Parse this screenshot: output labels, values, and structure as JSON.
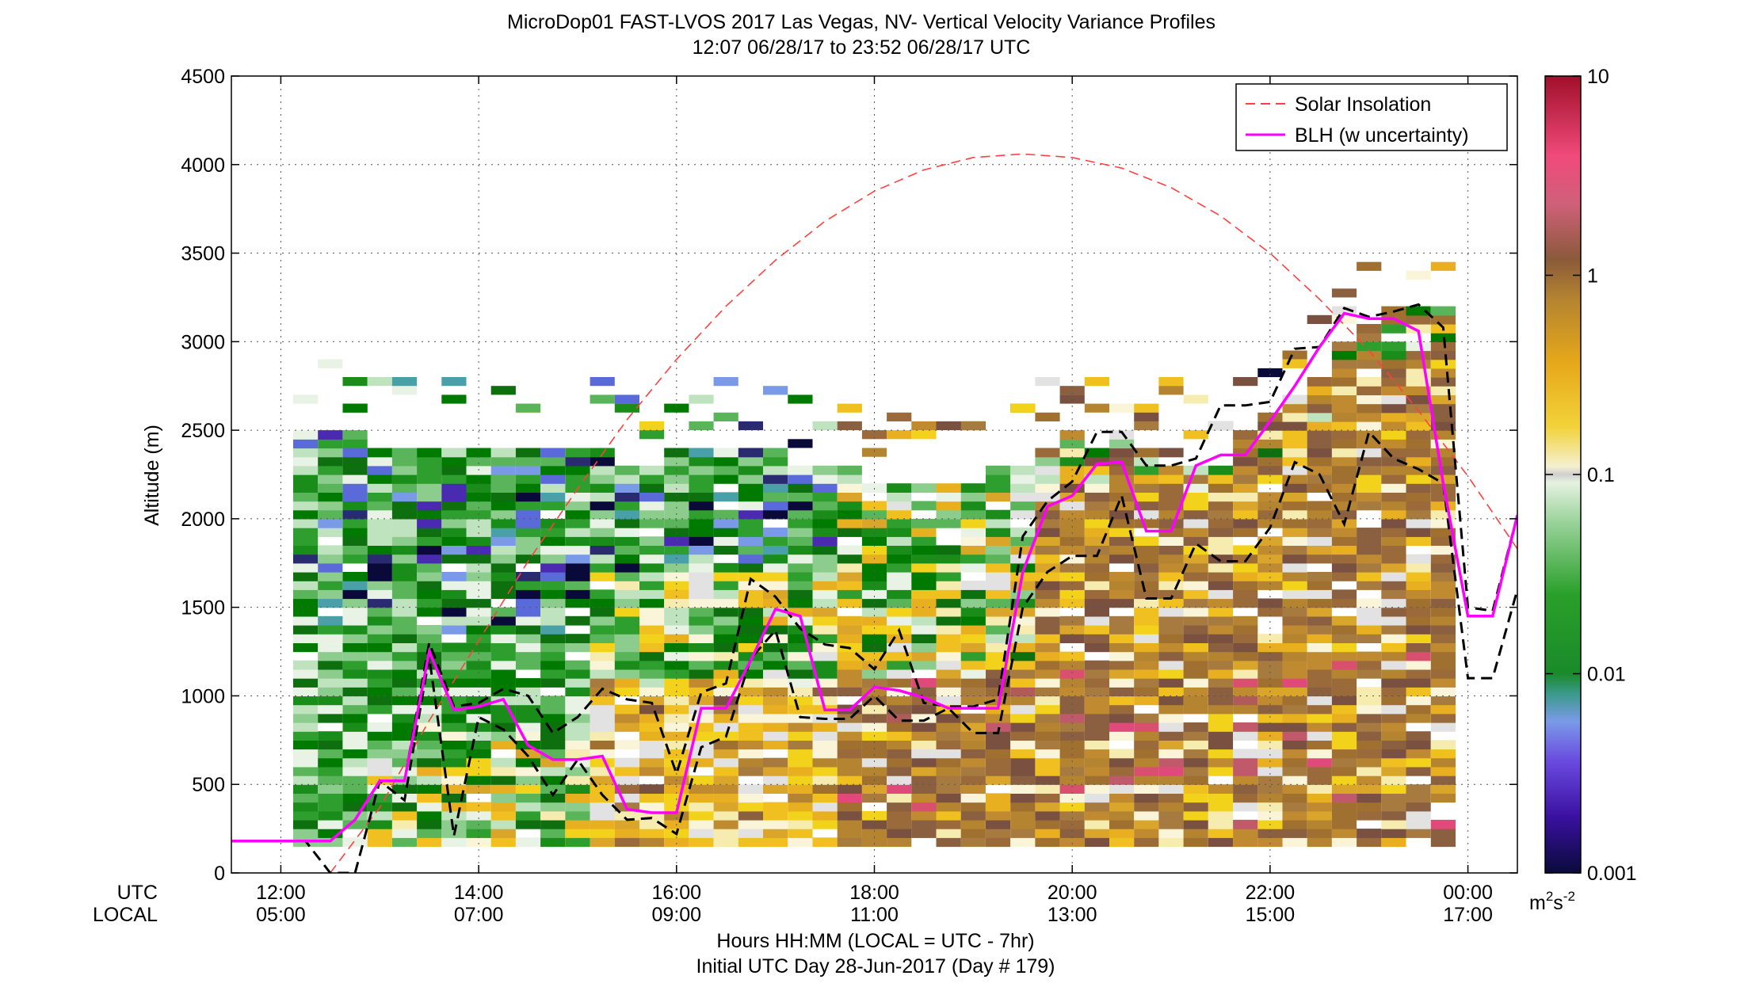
{
  "chart_data": {
    "type": "heatmap",
    "title": "MicroDop01 FAST-LVOS 2017 Las Vegas, NV- Vertical Velocity Variance Profiles",
    "subtitle": "12:07 06/28/17 to 23:52 06/28/17  UTC",
    "ylabel": "Altitude (m)",
    "xlabel": "Hours HH:MM  (LOCAL = UTC - 7hr)",
    "xlabel2": "Initial UTC Day 28-Jun-2017 (Day # 179)",
    "xaxis_row_labels": [
      "UTC",
      "LOCAL"
    ],
    "x_range_hours_utc": [
      11.5,
      24.5
    ],
    "ylim": [
      0,
      4500
    ],
    "yticks": [
      "0",
      "500",
      "1000",
      "1500",
      "2000",
      "2500",
      "3000",
      "3500",
      "4000",
      "4500"
    ],
    "xticks": [
      {
        "h": 12,
        "utc": "12:00",
        "local": "05:00"
      },
      {
        "h": 14,
        "utc": "14:00",
        "local": "07:00"
      },
      {
        "h": 16,
        "utc": "16:00",
        "local": "09:00"
      },
      {
        "h": 18,
        "utc": "18:00",
        "local": "11:00"
      },
      {
        "h": 20,
        "utc": "20:00",
        "local": "13:00"
      },
      {
        "h": 22,
        "utc": "22:00",
        "local": "15:00"
      },
      {
        "h": 24,
        "utc": "00:00",
        "local": "17:00"
      }
    ],
    "grid": true,
    "legend_position": "top-right",
    "legend": [
      {
        "label": "Solar Insolation",
        "color": "#ff4040",
        "style": "dashed"
      },
      {
        "label": "BLH (w uncertainty)",
        "color": "#ff00ff",
        "style": "solid"
      }
    ],
    "colorbar": {
      "scale": "log",
      "range": [
        0.001,
        10
      ],
      "tick_labels": [
        "0.001",
        "0.01",
        "0.1",
        "1",
        "10"
      ],
      "units_base": "m",
      "units_sup1": "2",
      "units_mid": "s",
      "units_sup2": "-2"
    },
    "blh": {
      "hours": [
        11.5,
        12.25,
        12.5,
        12.75,
        13.0,
        13.25,
        13.5,
        13.75,
        14.0,
        14.25,
        14.5,
        14.75,
        15.0,
        15.25,
        15.5,
        15.75,
        16.0,
        16.25,
        16.5,
        16.75,
        17.0,
        17.25,
        17.5,
        17.75,
        18.0,
        18.25,
        18.5,
        18.75,
        19.0,
        19.25,
        19.5,
        19.75,
        20.0,
        20.25,
        20.5,
        20.75,
        21.0,
        21.25,
        21.5,
        21.75,
        22.0,
        22.25,
        22.5,
        22.75,
        23.0,
        23.25,
        23.5,
        23.75,
        24.0,
        24.25,
        24.5
      ],
      "meters": [
        180,
        180,
        180,
        300,
        520,
        520,
        1250,
        920,
        940,
        980,
        720,
        640,
        640,
        660,
        360,
        340,
        340,
        930,
        930,
        1200,
        1490,
        1450,
        920,
        920,
        1050,
        1030,
        990,
        930,
        930,
        930,
        1700,
        2070,
        2130,
        2310,
        2320,
        1930,
        1930,
        2300,
        2360,
        2360,
        2550,
        2750,
        2970,
        3160,
        3130,
        3130,
        3060,
        2200,
        1450,
        1450,
        2020
      ],
      "upper": [
        180,
        180,
        180,
        300,
        520,
        520,
        1300,
        940,
        960,
        1040,
        1000,
        790,
        880,
        1040,
        980,
        960,
        560,
        1020,
        1070,
        1660,
        1560,
        1380,
        1290,
        1270,
        1150,
        1370,
        960,
        940,
        940,
        980,
        1900,
        2100,
        2210,
        2490,
        2490,
        2300,
        2300,
        2340,
        2640,
        2640,
        2660,
        2960,
        2970,
        3190,
        3140,
        3170,
        3210,
        3080,
        1500,
        1480,
        2020
      ],
      "lower": [
        180,
        180,
        0,
        0,
        520,
        410,
        1220,
        210,
        880,
        810,
        660,
        440,
        640,
        440,
        300,
        310,
        220,
        710,
        770,
        1210,
        1370,
        880,
        870,
        870,
        1000,
        860,
        860,
        930,
        790,
        790,
        1500,
        1700,
        1790,
        1790,
        2130,
        1550,
        1550,
        1860,
        1760,
        1760,
        1950,
        2320,
        2250,
        1970,
        2490,
        2340,
        2280,
        2200,
        1100,
        1100,
        1600
      ]
    },
    "solar_insolation": {
      "hours": [
        12.5,
        13.0,
        13.5,
        14.0,
        14.5,
        15.0,
        15.5,
        16.0,
        16.5,
        17.0,
        17.5,
        18.0,
        18.5,
        19.0,
        19.5,
        20.0,
        20.5,
        21.0,
        21.5,
        22.0,
        22.5,
        23.0,
        23.5,
        24.0,
        24.5
      ],
      "meters": [
        0,
        370,
        860,
        1310,
        1760,
        2170,
        2560,
        2900,
        3200,
        3460,
        3680,
        3850,
        3970,
        4040,
        4060,
        4040,
        3980,
        3870,
        3710,
        3500,
        3240,
        2950,
        2610,
        2240,
        1830
      ]
    },
    "variance_column_hours_utc": [
      12.25,
      12.5,
      12.75,
      13.0,
      13.25,
      13.5,
      13.75,
      14.0,
      14.25,
      14.5,
      14.75,
      15.0,
      15.25,
      15.5,
      15.75,
      16.0,
      16.25,
      16.5,
      16.75,
      17.0,
      17.25,
      17.5,
      17.75,
      18.0,
      18.25,
      18.5,
      18.75,
      19.0,
      19.25,
      19.5,
      19.75,
      20.0,
      20.25,
      20.5,
      20.75,
      21.0,
      21.25,
      21.5,
      21.75,
      22.0,
      22.25,
      22.5,
      22.75,
      23.0,
      23.25,
      23.5,
      23.75
    ],
    "variance_column_top_m": [
      2500,
      2500,
      2500,
      2400,
      2400,
      2400,
      2400,
      2400,
      2400,
      2400,
      2400,
      2400,
      2400,
      2300,
      2300,
      2400,
      2400,
      2400,
      2400,
      2400,
      2300,
      2300,
      2300,
      2200,
      2200,
      2200,
      2200,
      2200,
      2300,
      2300,
      2400,
      2500,
      2400,
      2500,
      2400,
      2400,
      2300,
      2300,
      2500,
      2600,
      2700,
      2800,
      3000,
      3100,
      3200,
      3200,
      3200
    ]
  }
}
